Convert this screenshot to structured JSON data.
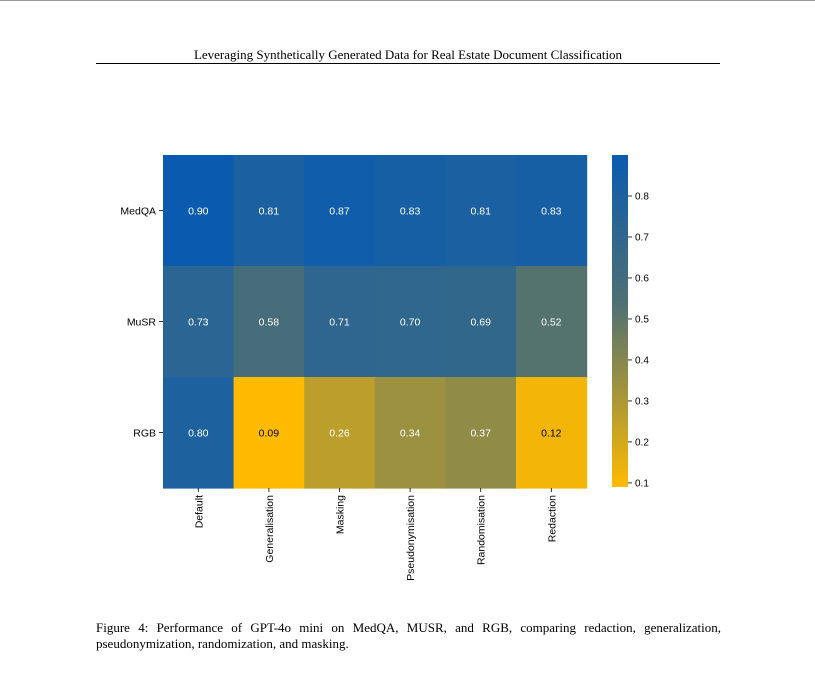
{
  "page": {
    "running_header": "Leveraging Synthetically Generated Data for Real Estate Document Classification",
    "caption": "Figure 4:  Performance of GPT-4o mini on MedQA, MUSR, and RGB, comparing redaction, generalization, pseudonymization, randomization, and masking."
  },
  "chart_data": {
    "type": "heatmap",
    "title": "",
    "xlabel": "",
    "ylabel": "",
    "rows": [
      "MedQA",
      "MuSR",
      "RGB"
    ],
    "columns": [
      "Default",
      "Generalisation",
      "Masking",
      "Pseudonymisation",
      "Randomisation",
      "Redaction"
    ],
    "values": [
      [
        0.9,
        0.81,
        0.87,
        0.83,
        0.81,
        0.83
      ],
      [
        0.73,
        0.58,
        0.71,
        0.7,
        0.69,
        0.52
      ],
      [
        0.8,
        0.09,
        0.26,
        0.34,
        0.37,
        0.12
      ]
    ],
    "cell_labels": [
      [
        "0.90",
        "0.81",
        "0.87",
        "0.83",
        "0.81",
        "0.83"
      ],
      [
        "0.73",
        "0.58",
        "0.71",
        "0.70",
        "0.69",
        "0.52"
      ],
      [
        "0.80",
        "0.09",
        "0.26",
        "0.34",
        "0.37",
        "0.12"
      ]
    ],
    "colorbar": {
      "range": [
        0.09,
        0.9
      ],
      "ticks": [
        0.1,
        0.2,
        0.3,
        0.4,
        0.5,
        0.6,
        0.7,
        0.8
      ],
      "tick_labels": [
        "0.1",
        "0.2",
        "0.3",
        "0.4",
        "0.5",
        "0.6",
        "0.7",
        "0.8"
      ],
      "low_color": "#ffbb00",
      "mid_color": "#4f7072",
      "high_color": "#0a5bb0"
    },
    "text_color": "#ffffff",
    "low_text_color": "#000000",
    "grid": false,
    "legend": "colorbar-right"
  }
}
